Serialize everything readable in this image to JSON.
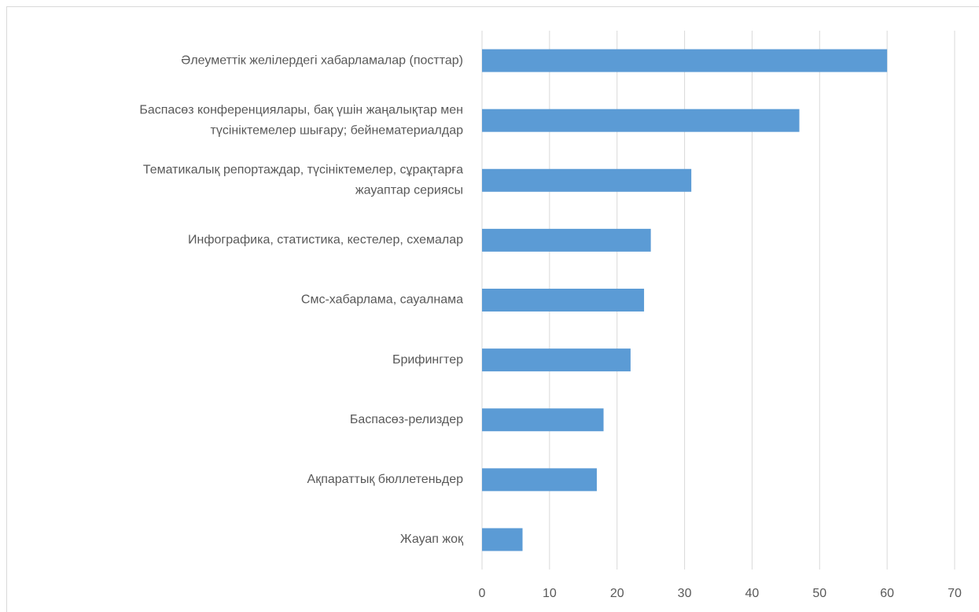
{
  "chart_data": {
    "type": "barh",
    "categories": [
      [
        "Әлеуметтік желілердегі хабарламалар (посттар)"
      ],
      [
        "Баспасөз конференциялары, бақ үшін жаңалықтар мен",
        "түсініктемелер шығару; бейнематериалдар"
      ],
      [
        "Тематикалық репортаждар, түсініктемелер, сұрақтарға",
        "жауаптар сериясы"
      ],
      [
        "Инфографика, статистика, кестелер, схемалар"
      ],
      [
        "Смс-хабарлама, сауалнама"
      ],
      [
        "Брифингтер"
      ],
      [
        "Баспасөз-релиздер"
      ],
      [
        "Ақпараттық бюллетеньдер"
      ],
      [
        "Жауап жоқ"
      ]
    ],
    "values": [
      60,
      47,
      31,
      25,
      24,
      22,
      18,
      17,
      6
    ],
    "color": "#5b9bd5",
    "xlim": [
      0,
      70
    ],
    "xticks": [
      0,
      10,
      20,
      30,
      40,
      50,
      60,
      70
    ],
    "grid": true
  }
}
